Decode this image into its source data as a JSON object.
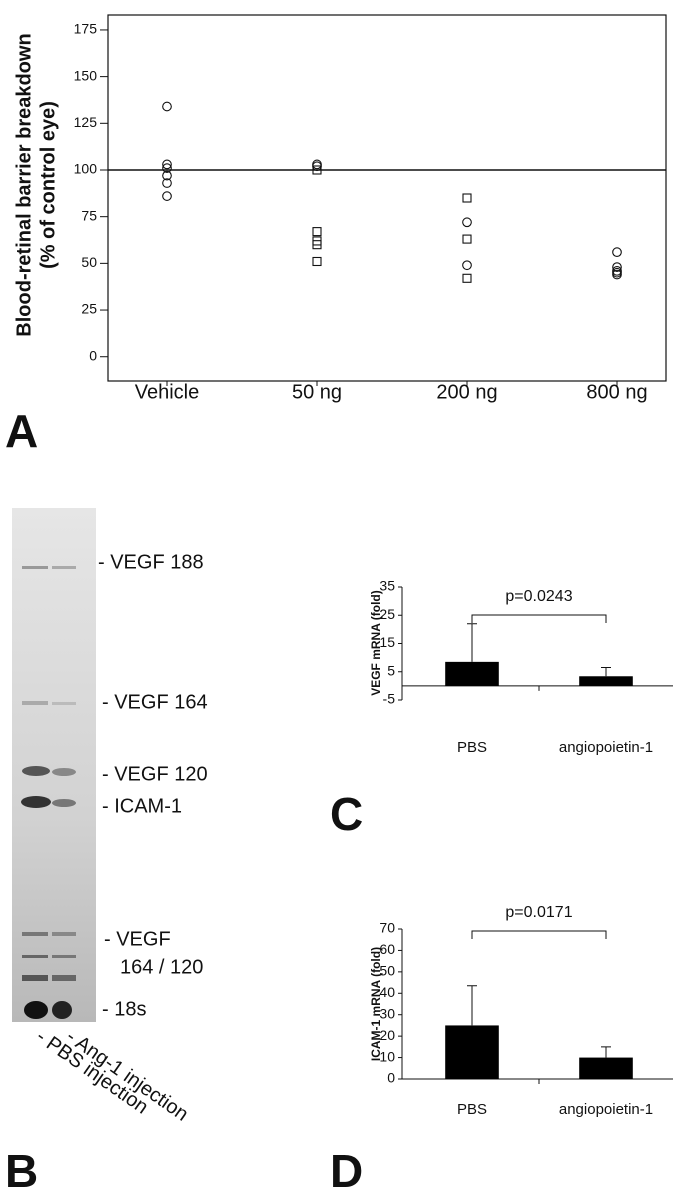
{
  "chart_data": [
    {
      "type": "scatter",
      "panel_label": "A",
      "ylabel": [
        "Blood-retinal barrier breakdown",
        "(% of control eye)"
      ],
      "categories": [
        "Vehicle",
        "50 ng",
        "200 ng",
        "800 ng"
      ],
      "series": [
        {
          "marker": "circle",
          "color": "#111111",
          "x": [
            "Vehicle",
            "Vehicle",
            "Vehicle",
            "Vehicle",
            "Vehicle",
            "Vehicle",
            "50 ng",
            "50 ng",
            "200 ng",
            "200 ng",
            "800 ng",
            "800 ng",
            "800 ng",
            "800 ng",
            "800 ng"
          ],
          "values": [
            134,
            103,
            101,
            97,
            93,
            86,
            103,
            102,
            72,
            49,
            56,
            48,
            46,
            45,
            44
          ]
        },
        {
          "marker": "square",
          "color": "#111111",
          "x": [
            "50 ng",
            "50 ng",
            "50 ng",
            "50 ng",
            "50 ng",
            "200 ng",
            "200 ng",
            "200 ng"
          ],
          "values": [
            100,
            67,
            62,
            60,
            51,
            85,
            63,
            42
          ]
        }
      ],
      "hline": 100,
      "ylim": [
        -13,
        183
      ],
      "yticks": [
        0,
        25,
        50,
        75,
        100,
        125,
        150,
        175
      ],
      "frame": true
    },
    {
      "type": "bar",
      "panel_label": "C",
      "ylabel": [
        "VEGF mRNA (fold)"
      ],
      "categories": [
        "PBS",
        "angiopoietin-1"
      ],
      "values": [
        8.5,
        3.4
      ],
      "errors": [
        13.5,
        3.1
      ],
      "color": "#000000",
      "annotation": "p=0.0243",
      "ylim": [
        -5,
        35
      ],
      "yticks": [
        -5,
        5,
        15,
        25,
        35
      ]
    },
    {
      "type": "bar",
      "panel_label": "D",
      "ylabel": [
        "ICAM-1 mRNA (fold)"
      ],
      "categories": [
        "PBS",
        "angiopoietin-1"
      ],
      "values": [
        25,
        10
      ],
      "errors": [
        18.5,
        5
      ],
      "color": "#000000",
      "annotation": "p=0.0171",
      "ylim": [
        0,
        70
      ],
      "yticks": [
        0,
        10,
        20,
        30,
        40,
        50,
        60,
        70
      ]
    }
  ],
  "gel": {
    "panel_label": "B",
    "bands": [
      "- VEGF 188",
      "- VEGF 164",
      "- VEGF 120",
      "- ICAM-1",
      "- VEGF",
      "164 / 120",
      "- 18s"
    ],
    "lanes": [
      "- Ang-1 injection",
      "- PBS injection"
    ]
  }
}
